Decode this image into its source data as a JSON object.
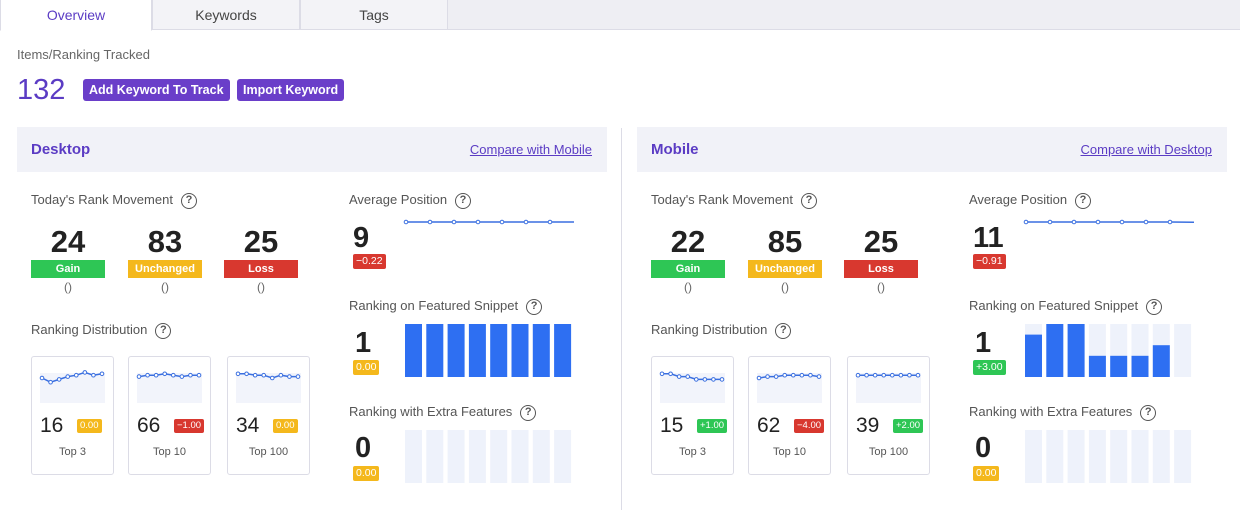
{
  "tabs": [
    {
      "label": "Overview",
      "active": true
    },
    {
      "label": "Keywords",
      "active": false
    },
    {
      "label": "Tags",
      "active": false
    }
  ],
  "tracked": {
    "label": "Items/Ranking Tracked",
    "count": "132",
    "add_button": "Add Keyword To Track",
    "import_button": "Import Keyword"
  },
  "common": {
    "rank_movement_label": "Today's Rank Movement",
    "average_position_label": "Average Position",
    "distribution_label": "Ranking Distribution",
    "featured_snippet_label": "Ranking on Featured Snippet",
    "extra_features_label": "Ranking with Extra Features",
    "help_icon": "?",
    "gain_label": "Gain",
    "unchanged_label": "Unchanged",
    "loss_label": "Loss",
    "top3_label": "Top 3",
    "top10_label": "Top 10",
    "top100_label": "Top 100"
  },
  "colors": {
    "accent": "#5b3cc4",
    "green": "#2ec655",
    "yellow": "#f4b81c",
    "red": "#d8382f",
    "bar": "#2e6ff2",
    "bar_empty": "#eef2fb"
  },
  "desktop": {
    "title": "Desktop",
    "compare": "Compare with Mobile",
    "gain": "24",
    "gain_sub": "()",
    "unchanged": "83",
    "unchanged_sub": "()",
    "loss": "25",
    "loss_sub": "()",
    "avg_position": "9",
    "avg_change": "−0.22",
    "avg_change_color": "red",
    "avg_trend": [
      3,
      3,
      3,
      3,
      3,
      3,
      3,
      3
    ],
    "top3": {
      "value": "16",
      "change": "0.00",
      "color": "yellow",
      "trend": [
        5,
        2,
        4,
        6,
        7,
        9,
        7,
        8
      ]
    },
    "top10": {
      "value": "66",
      "change": "−1.00",
      "color": "red",
      "trend": [
        6,
        7,
        7,
        8,
        7,
        6,
        7,
        7
      ]
    },
    "top100": {
      "value": "34",
      "change": "0.00",
      "color": "yellow",
      "trend": [
        8,
        8,
        7,
        7,
        5,
        7,
        6,
        6
      ]
    },
    "featured_value": "1",
    "featured_change": "0.00",
    "featured_color": "yellow",
    "featured_bars": [
      1,
      1,
      1,
      1,
      1,
      1,
      1,
      1
    ],
    "extra_value": "0",
    "extra_change": "0.00",
    "extra_color": "yellow",
    "extra_bars": [
      0,
      0,
      0,
      0,
      0,
      0,
      0,
      0
    ]
  },
  "mobile": {
    "title": "Mobile",
    "compare": "Compare with Desktop",
    "gain": "22",
    "gain_sub": "()",
    "unchanged": "85",
    "unchanged_sub": "()",
    "loss": "25",
    "loss_sub": "()",
    "avg_position": "11",
    "avg_change": "−0.91",
    "avg_change_color": "red",
    "avg_trend": [
      3,
      3,
      3,
      3,
      3,
      3,
      3,
      2.8
    ],
    "top3": {
      "value": "15",
      "change": "+1.00",
      "color": "green",
      "trend": [
        8,
        8,
        6,
        6,
        4,
        4,
        4,
        4
      ]
    },
    "top10": {
      "value": "62",
      "change": "−4.00",
      "color": "red",
      "trend": [
        5,
        6,
        6,
        7,
        7,
        7,
        7,
        6
      ]
    },
    "top100": {
      "value": "39",
      "change": "+2.00",
      "color": "green",
      "trend": [
        7,
        7,
        7,
        7,
        7,
        7,
        7,
        7
      ]
    },
    "featured_value": "1",
    "featured_change": "+3.00",
    "featured_color": "green",
    "featured_bars": [
      0.8,
      1,
      1,
      0.4,
      0.4,
      0.4,
      0.6,
      0
    ],
    "extra_value": "0",
    "extra_change": "0.00",
    "extra_color": "yellow",
    "extra_bars": [
      0,
      0,
      0,
      0,
      0,
      0,
      0,
      0
    ]
  }
}
